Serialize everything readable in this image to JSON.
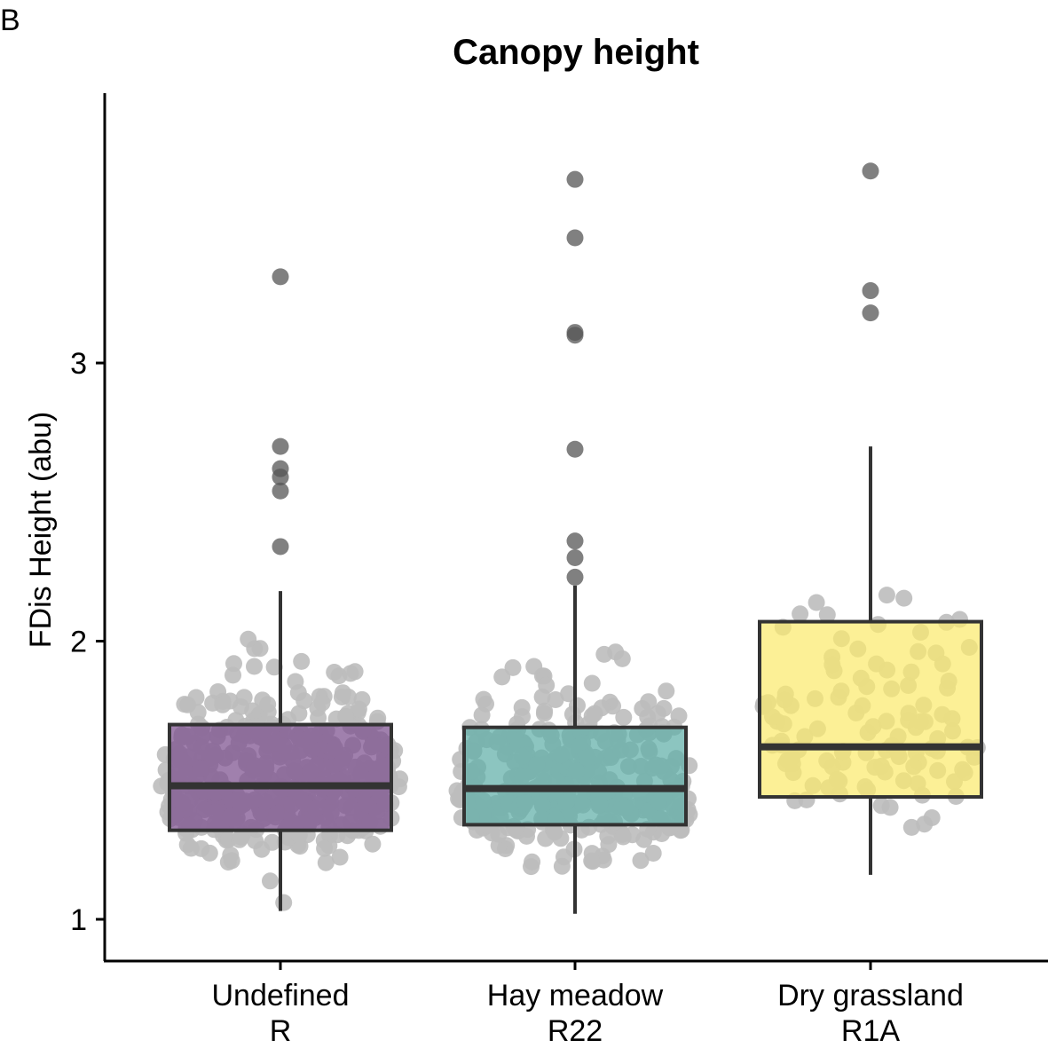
{
  "panel_label": "B",
  "chart_data": {
    "type": "box",
    "title": "Canopy height",
    "xlabel": "",
    "ylabel": "FDis Height (abu)",
    "ylim": [
      0.85,
      3.97
    ],
    "yticks": [
      1,
      2,
      3
    ],
    "grid": false,
    "legend": "none",
    "categories": [
      {
        "label": "Undefined",
        "code": "R"
      },
      {
        "label": "Hay meadow",
        "code": "R22"
      },
      {
        "label": "Dry grassland",
        "code": "R1A"
      }
    ],
    "boxes": [
      {
        "q1": 1.32,
        "median": 1.48,
        "q3": 1.7,
        "whisker_low": 1.03,
        "whisker_high": 2.18,
        "outliers": [
          3.31,
          2.7,
          2.62,
          2.59,
          2.54,
          2.34
        ],
        "fill": "#7B4F8E",
        "points": 400
      },
      {
        "q1": 1.34,
        "median": 1.47,
        "q3": 1.69,
        "whisker_low": 1.02,
        "whisker_high": 2.2,
        "outliers": [
          3.66,
          3.45,
          3.11,
          3.1,
          2.69,
          2.36,
          2.3,
          2.23
        ],
        "fill": "#5FAFA8",
        "points": 330
      },
      {
        "q1": 1.44,
        "median": 1.62,
        "q3": 2.07,
        "whisker_low": 1.16,
        "whisker_high": 2.7,
        "outliers": [
          3.69,
          3.26,
          3.18
        ],
        "fill": "#FBEA6E",
        "points": 110
      }
    ],
    "colors": {
      "points": "#bdbdbd",
      "outlier": "#555555",
      "box_stroke": "#333333"
    }
  }
}
